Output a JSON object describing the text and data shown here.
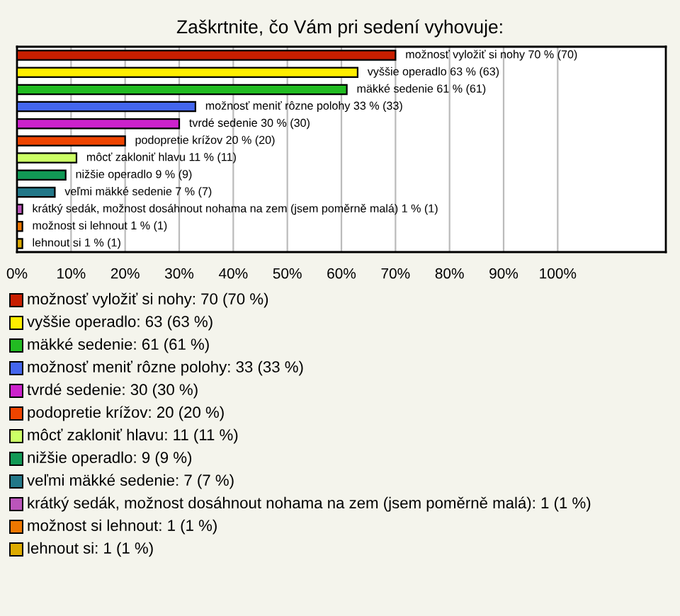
{
  "chart_data": {
    "type": "bar",
    "orientation": "horizontal",
    "title": "Zaškrtnite, čo Vám pri sedení vyhovuje:",
    "categories": [
      "možnosť vyložiť si nohy 70 % (70)",
      "vyššie operadlo 63 % (63)",
      "mäkké sedenie 61 % (61)",
      "možnosť meniť rôzne polohy 33 % (33)",
      "tvrdé sedenie 30 % (30)",
      "podopretie krížov 20 % (20)",
      "môcť zakloniť hlavu 11 % (11)",
      "nižšie operadlo 9 % (9)",
      "veľmi mäkké sedenie 7 % (7)",
      "krátký sedák, možnost dosáhnout nohama na zem (jsem poměrně malá) 1 % (1)",
      "možnost si lehnout 1 % (1)",
      "lehnout si 1 % (1)"
    ],
    "values": [
      70,
      63,
      61,
      33,
      30,
      20,
      11,
      9,
      7,
      1,
      1,
      1
    ],
    "colors": [
      "#c81e00",
      "#ffee00",
      "#22bb22",
      "#4466ee",
      "#cc22cc",
      "#ee4400",
      "#ccff66",
      "#119955",
      "#227788",
      "#bb55bb",
      "#ee7700",
      "#ddaa00"
    ],
    "xlim": [
      0,
      120
    ],
    "xticks": [
      {
        "value": 0,
        "label": "0%"
      },
      {
        "value": 10,
        "label": "10%"
      },
      {
        "value": 20,
        "label": "20%"
      },
      {
        "value": 30,
        "label": "30%"
      },
      {
        "value": 40,
        "label": "40%"
      },
      {
        "value": 50,
        "label": "50%"
      },
      {
        "value": 60,
        "label": "60%"
      },
      {
        "value": 70,
        "label": "70%"
      },
      {
        "value": 80,
        "label": "80%"
      },
      {
        "value": 90,
        "label": "90%"
      },
      {
        "value": 100,
        "label": "100%"
      }
    ],
    "grid": "x",
    "tick_labels": "x",
    "annotations": [
      "možnosť vyložiť si nohy: 70 (70 %)",
      "vyššie operadlo: 63 (63 %)",
      "mäkké sedenie: 61 (61 %)",
      "možnosť meniť rôzne polohy: 33 (33 %)",
      "tvrdé sedenie: 30 (30 %)",
      "podopretie krížov: 20 (20 %)",
      "môcť zakloniť hlavu: 11 (11 %)",
      "nižšie operadlo: 9 (9 %)",
      "veľmi mäkké sedenie: 7 (7 %)",
      "krátký sedák, možnost dosáhnout nohama na zem (jsem poměrně malá): 1 (1 %)",
      "možnost si lehnout: 1 (1 %)",
      "lehnout si: 1 (1 %)"
    ]
  }
}
